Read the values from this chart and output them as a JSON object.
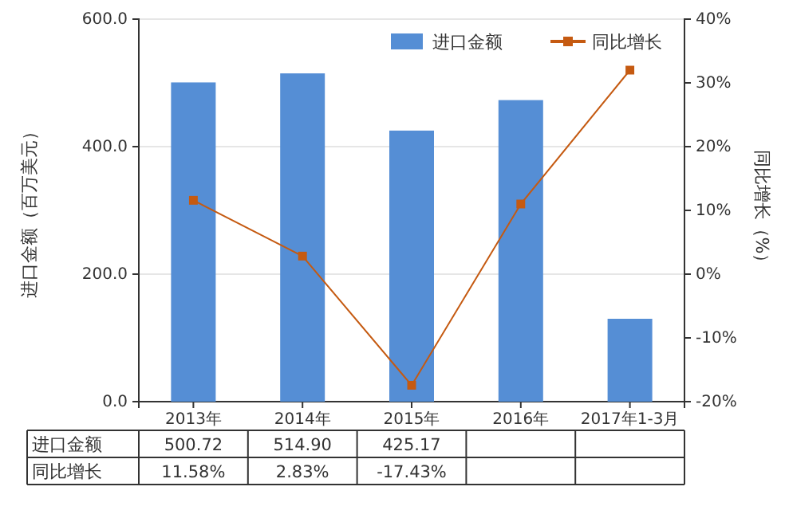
{
  "chart_data": {
    "type": "bar",
    "categories": [
      "2013年",
      "2014年",
      "2015年",
      "2016年",
      "2017年1-3月"
    ],
    "series": [
      {
        "name": "进口金额",
        "color": "#558ed5",
        "values": [
          500.72,
          514.9,
          425.17,
          473,
          130
        ],
        "value_labels": [
          "500.72",
          "514.90",
          "425.17",
          null,
          null
        ]
      },
      {
        "name": "同比增长",
        "type": "line",
        "axis": "y2",
        "color": "#c55a11",
        "marker": "square",
        "values": [
          11.58,
          2.83,
          -17.43,
          11,
          32
        ],
        "value_labels": [
          "11.58%",
          "2.83%",
          "-17.43%",
          null,
          null
        ]
      }
    ],
    "ylabel": "进口金额（百万美元）",
    "y2label": "同比增长（%）",
    "ylim": [
      0,
      600
    ],
    "yticks": [
      {
        "value": 0,
        "label": "0.0"
      },
      {
        "value": 200,
        "label": "200.0"
      },
      {
        "value": 400,
        "label": "400.0"
      },
      {
        "value": 600,
        "label": "600.0"
      }
    ],
    "y2lim": [
      -20,
      40
    ],
    "y2ticks": [
      {
        "value": -20,
        "label": "-20%"
      },
      {
        "value": -10,
        "label": "-10%"
      },
      {
        "value": 0,
        "label": "0%"
      },
      {
        "value": 10,
        "label": "10%"
      },
      {
        "value": 20,
        "label": "20%"
      },
      {
        "value": 30,
        "label": "30%"
      },
      {
        "value": 40,
        "label": "40%"
      }
    ],
    "grid": "y",
    "legend": "top right"
  }
}
